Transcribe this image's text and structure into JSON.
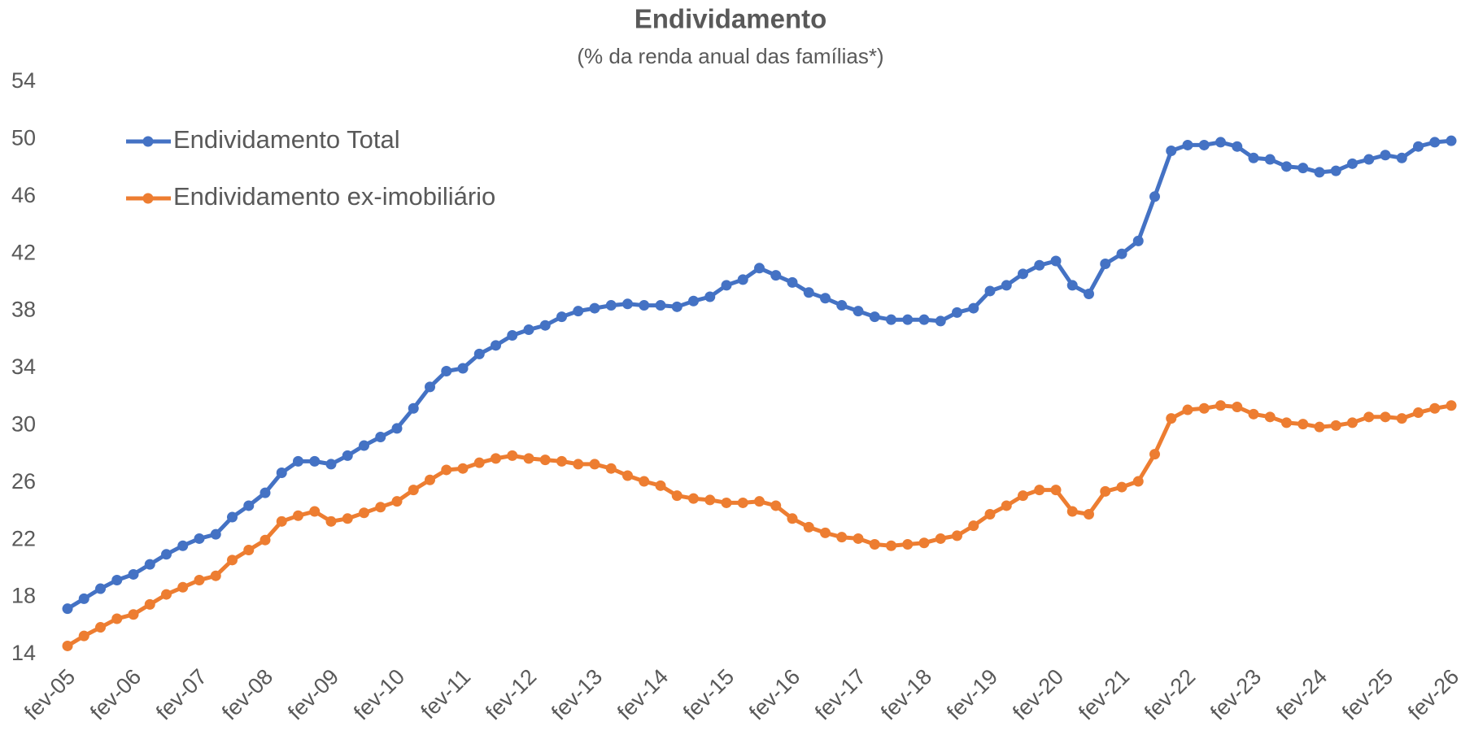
{
  "chart_data": {
    "type": "line",
    "title": "Endividamento",
    "subtitle": "(% da renda anual das famílias*)",
    "categories": [
      "fev-05",
      null,
      null,
      null,
      "fev-06",
      null,
      null,
      null,
      "fev-07",
      null,
      null,
      null,
      "fev-08",
      null,
      null,
      null,
      "fev-09",
      null,
      null,
      null,
      "fev-10",
      null,
      null,
      null,
      "fev-11",
      null,
      null,
      null,
      "fev-12",
      null,
      null,
      null,
      "fev-13",
      null,
      null,
      null,
      "fev-14",
      null,
      null,
      null,
      "fev-15",
      null,
      null,
      null,
      "fev-16",
      null,
      null,
      null,
      "fev-17",
      null,
      null,
      null,
      "fev-18",
      null,
      null,
      null,
      "fev-19",
      null,
      null,
      null,
      "fev-20",
      null,
      null,
      null,
      "fev-21",
      null,
      null,
      null,
      "fev-22",
      null,
      null,
      null,
      "fev-23",
      null,
      null,
      null,
      "fev-24",
      null,
      null,
      null,
      "fev-25",
      null,
      null,
      null,
      "fev-26"
    ],
    "series": [
      {
        "name": "Endividamento Total",
        "color": "#4472c4",
        "values": [
          17.2,
          17.9,
          18.6,
          19.2,
          19.6,
          20.3,
          21.0,
          21.6,
          22.1,
          22.4,
          23.6,
          24.4,
          25.3,
          26.7,
          27.5,
          27.5,
          27.3,
          27.9,
          28.6,
          29.2,
          29.8,
          31.2,
          32.7,
          33.8,
          34.0,
          35.0,
          35.6,
          36.3,
          36.7,
          37.0,
          37.6,
          38.0,
          38.2,
          38.4,
          38.5,
          38.4,
          38.4,
          38.3,
          38.7,
          39.0,
          39.8,
          40.2,
          41.0,
          40.5,
          40.0,
          39.3,
          38.9,
          38.4,
          38.0,
          37.6,
          37.4,
          37.4,
          37.4,
          37.3,
          37.9,
          38.2,
          39.4,
          39.8,
          40.6,
          41.2,
          41.5,
          39.8,
          39.2,
          41.3,
          42.0,
          42.9,
          46.0,
          49.2,
          49.6,
          49.6,
          49.8,
          49.5,
          48.7,
          48.6,
          48.1,
          48.0,
          47.7,
          47.8,
          48.3,
          48.6,
          48.9,
          48.7,
          49.5,
          49.8,
          49.9
        ]
      },
      {
        "name": "Endividamento ex-imobiliário",
        "color": "#ed7d31",
        "values": [
          14.6,
          15.3,
          15.9,
          16.5,
          16.8,
          17.5,
          18.2,
          18.7,
          19.2,
          19.5,
          20.6,
          21.3,
          22.0,
          23.3,
          23.7,
          24.0,
          23.3,
          23.5,
          23.9,
          24.3,
          24.7,
          25.5,
          26.2,
          26.9,
          27.0,
          27.4,
          27.7,
          27.9,
          27.7,
          27.6,
          27.5,
          27.3,
          27.3,
          27.0,
          26.5,
          26.1,
          25.8,
          25.1,
          24.9,
          24.8,
          24.6,
          24.6,
          24.7,
          24.4,
          23.5,
          22.9,
          22.5,
          22.2,
          22.1,
          21.7,
          21.6,
          21.7,
          21.8,
          22.1,
          22.3,
          23.0,
          23.8,
          24.4,
          25.1,
          25.5,
          25.5,
          24.0,
          23.8,
          25.4,
          25.7,
          26.1,
          28.0,
          30.5,
          31.1,
          31.2,
          31.4,
          31.3,
          30.8,
          30.6,
          30.2,
          30.1,
          29.9,
          30.0,
          30.2,
          30.6,
          30.6,
          30.5,
          30.9,
          31.2,
          31.4
        ]
      }
    ],
    "ylim": [
      14,
      54
    ],
    "yticks": [
      14,
      18,
      22,
      26,
      30,
      34,
      38,
      42,
      46,
      50,
      54
    ],
    "grid": false,
    "legend": "upper left",
    "markers": true
  }
}
